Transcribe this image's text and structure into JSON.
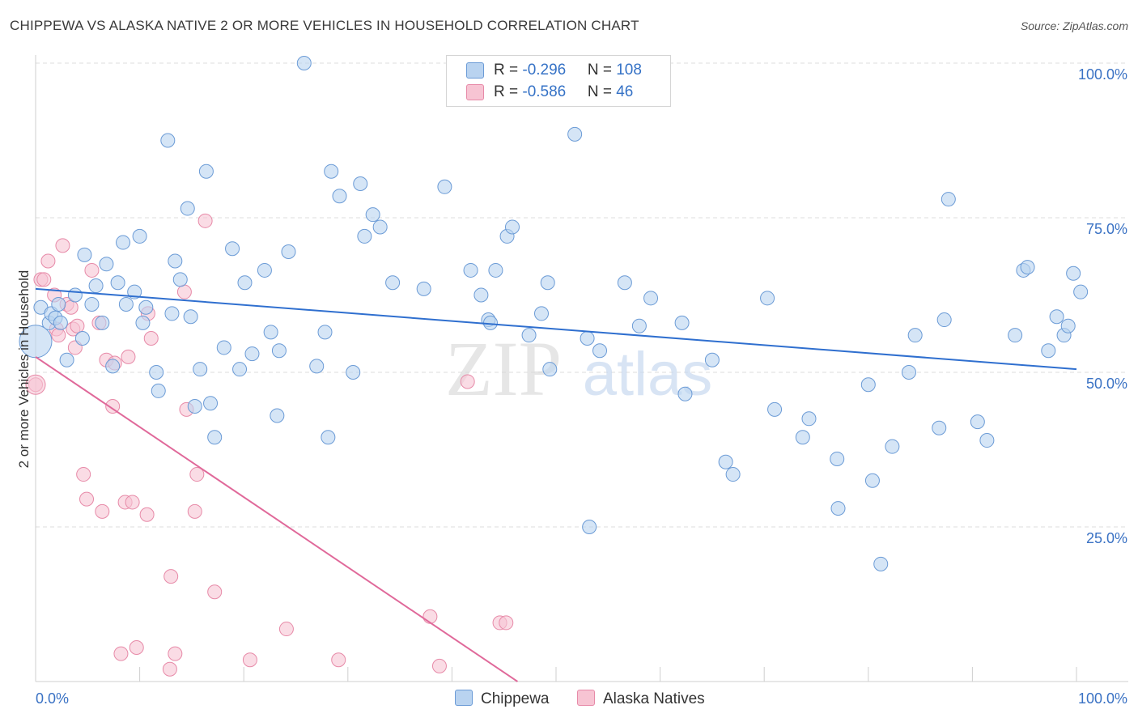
{
  "title": "CHIPPEWA VS ALASKA NATIVE 2 OR MORE VEHICLES IN HOUSEHOLD CORRELATION CHART",
  "source": "Source: ZipAtlas.com",
  "watermark": {
    "zip": "ZIP",
    "atlas": "atlas"
  },
  "legend": {
    "rows": [
      {
        "r_label": "R = ",
        "r_value": "-0.296",
        "n_label": "N = ",
        "n_value": "108"
      },
      {
        "r_label": "R = ",
        "r_value": "-0.586",
        "n_label": "N = ",
        "n_value": "46"
      }
    ]
  },
  "bottom_legend": [
    "Chippewa",
    "Alaska Natives"
  ],
  "colors": {
    "chippewa_fill": "#b9d3f0",
    "chippewa_stroke": "#6b9bd6",
    "chippewa_line": "#2f6fcf",
    "alaska_fill": "#f7c4d3",
    "alaska_stroke": "#e78aa8",
    "alaska_line": "#e0699a",
    "tick_label": "#3a72c4"
  },
  "chart_data": {
    "type": "scatter",
    "title": "CHIPPEWA VS ALASKA NATIVE 2 OR MORE VEHICLES IN HOUSEHOLD CORRELATION CHART",
    "xlabel": "",
    "ylabel": "2 or more Vehicles in Household",
    "xlim": [
      0,
      100
    ],
    "ylim": [
      0,
      100
    ],
    "x_tick_labels": [
      "0.0%",
      "100.0%"
    ],
    "y_ticks": [
      {
        "value": 100,
        "label": "100.0%"
      },
      {
        "value": 75,
        "label": "75.0%"
      },
      {
        "value": 50,
        "label": "50.0%"
      },
      {
        "value": 25,
        "label": "25.0%"
      }
    ],
    "grid": true,
    "legend_position": "top-center",
    "series": [
      {
        "name": "Chippewa",
        "points": [
          [
            0.5,
            60.5
          ],
          [
            1.3,
            58
          ],
          [
            1.5,
            59.5
          ],
          [
            1.9,
            58.8
          ],
          [
            2.2,
            61
          ],
          [
            2.4,
            58
          ],
          [
            3,
            52
          ],
          [
            3.8,
            62.5
          ],
          [
            4.5,
            55.5
          ],
          [
            4.7,
            69
          ],
          [
            5.4,
            61
          ],
          [
            5.8,
            64
          ],
          [
            6.4,
            58
          ],
          [
            6.8,
            67.5
          ],
          [
            7.4,
            51
          ],
          [
            7.9,
            64.5
          ],
          [
            8.4,
            71
          ],
          [
            8.7,
            61
          ],
          [
            9.5,
            63
          ],
          [
            10,
            72
          ],
          [
            10.3,
            58
          ],
          [
            10.6,
            60.5
          ],
          [
            11.6,
            50
          ],
          [
            11.8,
            47
          ],
          [
            12.7,
            87.5
          ],
          [
            13.1,
            59.5
          ],
          [
            13.4,
            68
          ],
          [
            13.9,
            65
          ],
          [
            14.6,
            76.5
          ],
          [
            14.9,
            59
          ],
          [
            15.3,
            44.5
          ],
          [
            15.8,
            50.5
          ],
          [
            16.4,
            82.5
          ],
          [
            16.8,
            45
          ],
          [
            17.2,
            39.5
          ],
          [
            18.1,
            54
          ],
          [
            18.9,
            70
          ],
          [
            19.6,
            50.5
          ],
          [
            20.1,
            64.5
          ],
          [
            20.8,
            53
          ],
          [
            22,
            66.5
          ],
          [
            22.6,
            56.5
          ],
          [
            23.2,
            43
          ],
          [
            23.4,
            53.5
          ],
          [
            24.3,
            69.5
          ],
          [
            25.8,
            100
          ],
          [
            27,
            51
          ],
          [
            27.8,
            56.5
          ],
          [
            28.1,
            39.5
          ],
          [
            28.4,
            82.5
          ],
          [
            29.2,
            78.5
          ],
          [
            30.5,
            50
          ],
          [
            31.2,
            80.5
          ],
          [
            31.6,
            72
          ],
          [
            32.4,
            75.5
          ],
          [
            33.1,
            73.5
          ],
          [
            34.3,
            64.5
          ],
          [
            37.3,
            63.5
          ],
          [
            39.3,
            80
          ],
          [
            41.8,
            66.5
          ],
          [
            42.8,
            62.5
          ],
          [
            43.5,
            58.5
          ],
          [
            43.7,
            58
          ],
          [
            44.2,
            66.5
          ],
          [
            45.3,
            72
          ],
          [
            45.8,
            73.5
          ],
          [
            47.4,
            56
          ],
          [
            48.6,
            59.5
          ],
          [
            49.2,
            64.5
          ],
          [
            49.4,
            50.5
          ],
          [
            51.8,
            88.5
          ],
          [
            53,
            55.5
          ],
          [
            53.2,
            25
          ],
          [
            54.2,
            53.5
          ],
          [
            56.6,
            64.5
          ],
          [
            58,
            57.5
          ],
          [
            59.1,
            62
          ],
          [
            62.1,
            58
          ],
          [
            62.4,
            46.5
          ],
          [
            65,
            52
          ],
          [
            66.3,
            35.5
          ],
          [
            67,
            33.5
          ],
          [
            70.3,
            62
          ],
          [
            71,
            44
          ],
          [
            73.7,
            39.5
          ],
          [
            74.3,
            42.5
          ],
          [
            77,
            36
          ],
          [
            77.1,
            28
          ],
          [
            80,
            48
          ],
          [
            80.4,
            32.5
          ],
          [
            81.2,
            19
          ],
          [
            82.3,
            38
          ],
          [
            83.9,
            50
          ],
          [
            84.5,
            56
          ],
          [
            86.8,
            41
          ],
          [
            87.3,
            58.5
          ],
          [
            87.7,
            78
          ],
          [
            90.5,
            42
          ],
          [
            91.4,
            39
          ],
          [
            94.1,
            56
          ],
          [
            94.9,
            66.5
          ],
          [
            95.3,
            67
          ],
          [
            97.3,
            53.5
          ],
          [
            98.1,
            59
          ],
          [
            98.8,
            56
          ],
          [
            99.2,
            57.5
          ],
          [
            99.7,
            66
          ],
          [
            100.4,
            63
          ]
        ],
        "trend": {
          "x": [
            0,
            100
          ],
          "y": [
            63.5,
            50.5
          ]
        }
      },
      {
        "name": "Alaska Natives",
        "points": [
          [
            0.5,
            65
          ],
          [
            0.8,
            65
          ],
          [
            1.2,
            68
          ],
          [
            1.8,
            62.5
          ],
          [
            2,
            57
          ],
          [
            2.2,
            56
          ],
          [
            2.6,
            70.5
          ],
          [
            3,
            61
          ],
          [
            3.4,
            60.5
          ],
          [
            3.6,
            57
          ],
          [
            3.8,
            54
          ],
          [
            4,
            57.5
          ],
          [
            4.6,
            33.5
          ],
          [
            4.9,
            29.5
          ],
          [
            5.4,
            66.5
          ],
          [
            6.1,
            58
          ],
          [
            6.4,
            27.5
          ],
          [
            6.8,
            52
          ],
          [
            7.4,
            44.5
          ],
          [
            7.6,
            51.5
          ],
          [
            8.2,
            4.5
          ],
          [
            8.6,
            29
          ],
          [
            8.9,
            52.5
          ],
          [
            9.3,
            29
          ],
          [
            9.7,
            5.5
          ],
          [
            10.7,
            27
          ],
          [
            10.8,
            59.5
          ],
          [
            11.1,
            55.5
          ],
          [
            12.9,
            2
          ],
          [
            13,
            17
          ],
          [
            13.4,
            4.5
          ],
          [
            14.3,
            63
          ],
          [
            14.5,
            44
          ],
          [
            15.3,
            27.5
          ],
          [
            15.5,
            33.5
          ],
          [
            16.3,
            74.5
          ],
          [
            17.2,
            14.5
          ],
          [
            20.6,
            3.5
          ],
          [
            24.1,
            8.5
          ],
          [
            29.1,
            3.5
          ],
          [
            37.9,
            10.5
          ],
          [
            38.8,
            2.5
          ],
          [
            41.5,
            48.5
          ],
          [
            44.6,
            9.5
          ],
          [
            45.2,
            9.5
          ],
          [
            0,
            48
          ]
        ],
        "trend": {
          "x": [
            0,
            46.3
          ],
          "y": [
            52.5,
            0
          ]
        }
      }
    ]
  }
}
